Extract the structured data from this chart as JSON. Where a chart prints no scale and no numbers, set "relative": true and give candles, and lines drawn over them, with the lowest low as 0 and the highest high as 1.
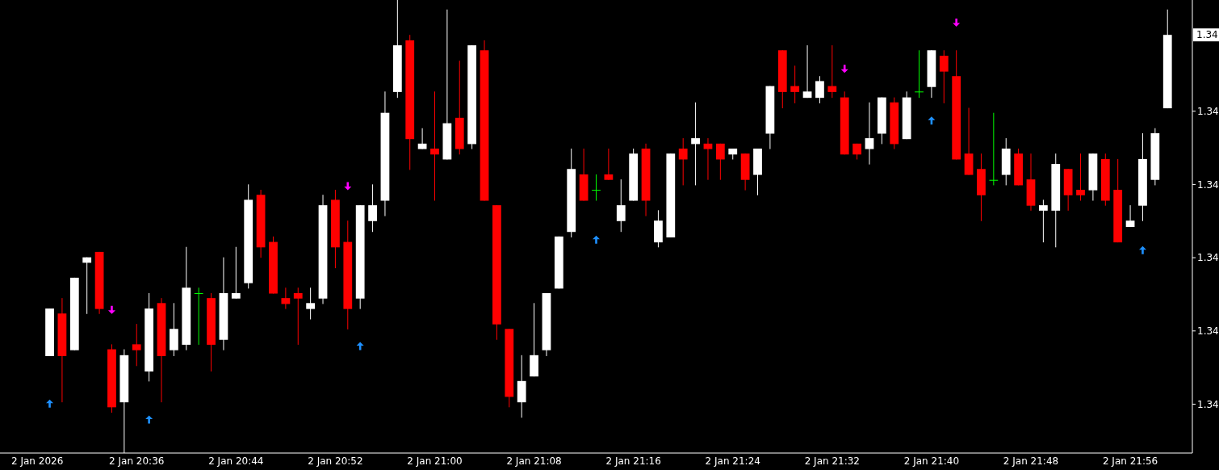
{
  "chart_data": {
    "type": "candlestick",
    "relative": true,
    "x": [
      "2026-01-02T20:29",
      "2026-01-02T20:30",
      "2026-01-02T20:31",
      "2026-01-02T20:32",
      "2026-01-02T20:33",
      "2026-01-02T20:34",
      "2026-01-02T20:35",
      "2026-01-02T20:36",
      "2026-01-02T20:37",
      "2026-01-02T20:38",
      "2026-01-02T20:39",
      "2026-01-02T20:40",
      "2026-01-02T20:41",
      "2026-01-02T20:42",
      "2026-01-02T20:43",
      "2026-01-02T20:44",
      "2026-01-02T20:45",
      "2026-01-02T20:46",
      "2026-01-02T20:47",
      "2026-01-02T20:48",
      "2026-01-02T20:49",
      "2026-01-02T20:50",
      "2026-01-02T20:51",
      "2026-01-02T20:52",
      "2026-01-02T20:53",
      "2026-01-02T20:54",
      "2026-01-02T20:55",
      "2026-01-02T20:56",
      "2026-01-02T20:57",
      "2026-01-02T20:58",
      "2026-01-02T20:59",
      "2026-01-02T21:00",
      "2026-01-02T21:01",
      "2026-01-02T21:02",
      "2026-01-02T21:03",
      "2026-01-02T21:04",
      "2026-01-02T21:05",
      "2026-01-02T21:06",
      "2026-01-02T21:07",
      "2026-01-02T21:08",
      "2026-01-02T21:09",
      "2026-01-02T21:10",
      "2026-01-02T21:11",
      "2026-01-02T21:12",
      "2026-01-02T21:13",
      "2026-01-02T21:14",
      "2026-01-02T21:15",
      "2026-01-02T21:16",
      "2026-01-02T21:17",
      "2026-01-02T21:18",
      "2026-01-02T21:19",
      "2026-01-02T21:20",
      "2026-01-02T21:21",
      "2026-01-02T21:22",
      "2026-01-02T21:23",
      "2026-01-02T21:24",
      "2026-01-02T21:25",
      "2026-01-02T21:26",
      "2026-01-02T21:27",
      "2026-01-02T21:28",
      "2026-01-02T21:29",
      "2026-01-02T21:30",
      "2026-01-02T21:31",
      "2026-01-02T21:32",
      "2026-01-02T21:33",
      "2026-01-02T21:34",
      "2026-01-02T21:35",
      "2026-01-02T21:36",
      "2026-01-02T21:37",
      "2026-01-02T21:38",
      "2026-01-02T21:39",
      "2026-01-02T21:40",
      "2026-01-02T21:41",
      "2026-01-02T21:42",
      "2026-01-02T21:43",
      "2026-01-02T21:44",
      "2026-01-02T21:45",
      "2026-01-02T21:46",
      "2026-01-02T21:47",
      "2026-01-02T21:48",
      "2026-01-02T21:49",
      "2026-01-02T21:50",
      "2026-01-02T21:51",
      "2026-01-02T21:52",
      "2026-01-02T21:53",
      "2026-01-02T21:54",
      "2026-01-02T21:55",
      "2026-01-02T21:56",
      "2026-01-02T21:57",
      "2026-01-02T21:58",
      "2026-01-02T21:59"
    ],
    "ohlc": [
      [
        0.214,
        0.319,
        0.214,
        0.319
      ],
      [
        0.308,
        0.342,
        0.112,
        0.214
      ],
      [
        0.227,
        0.387,
        0.227,
        0.387
      ],
      [
        0.42,
        0.432,
        0.307,
        0.432
      ],
      [
        0.444,
        0.444,
        0.307,
        0.318
      ],
      [
        0.229,
        0.24,
        0.089,
        0.101
      ],
      [
        0.112,
        0.229,
        0,
        0.216
      ],
      [
        0.24,
        0.285,
        0.192,
        0.227
      ],
      [
        0.18,
        0.353,
        0.158,
        0.319
      ],
      [
        0.331,
        0.342,
        0.112,
        0.214
      ],
      [
        0.227,
        0.331,
        0.214,
        0.274
      ],
      [
        0.239,
        0.455,
        0.227,
        0.365
      ],
      [
        0.353,
        0.365,
        0.239,
        0.353
      ],
      [
        0.342,
        0.353,
        0.18,
        0.239
      ],
      [
        0.25,
        0.432,
        0.227,
        0.353
      ],
      [
        0.341,
        0.455,
        0.341,
        0.353
      ],
      [
        0.375,
        0.593,
        0.363,
        0.559
      ],
      [
        0.57,
        0.581,
        0.431,
        0.454
      ],
      [
        0.466,
        0.478,
        0.352,
        0.352
      ],
      [
        0.342,
        0.365,
        0.318,
        0.329
      ],
      [
        0.353,
        0.365,
        0.239,
        0.341
      ],
      [
        0.318,
        0.365,
        0.295,
        0.331
      ],
      [
        0.341,
        0.57,
        0.329,
        0.547
      ],
      [
        0.559,
        0.581,
        0.408,
        0.454
      ],
      [
        0.466,
        0.513,
        0.273,
        0.318
      ],
      [
        0.341,
        0.547,
        0.318,
        0.547
      ],
      [
        0.512,
        0.593,
        0.488,
        0.547
      ],
      [
        0.557,
        0.798,
        0.523,
        0.751
      ],
      [
        0.797,
        1,
        0.784,
        0.9
      ],
      [
        0.911,
        0.923,
        0.625,
        0.693
      ],
      [
        0.671,
        0.717,
        0.671,
        0.683
      ],
      [
        0.672,
        0.798,
        0.557,
        0.659
      ],
      [
        0.648,
        0.979,
        0.648,
        0.728
      ],
      [
        0.74,
        0.866,
        0.659,
        0.671
      ],
      [
        0.682,
        0.9,
        0.671,
        0.9
      ],
      [
        0.889,
        0.911,
        0.557,
        0.557
      ],
      [
        0.547,
        0.547,
        0.25,
        0.284
      ],
      [
        0.274,
        0.274,
        0.101,
        0.124
      ],
      [
        0.112,
        0.216,
        0.078,
        0.159
      ],
      [
        0.169,
        0.331,
        0.169,
        0.216
      ],
      [
        0.227,
        0.353,
        0.214,
        0.353
      ],
      [
        0.363,
        0.478,
        0.363,
        0.478
      ],
      [
        0.488,
        0.672,
        0.476,
        0.627
      ],
      [
        0.615,
        0.672,
        0.557,
        0.557
      ],
      [
        0.581,
        0.615,
        0.557,
        0.581
      ],
      [
        0.615,
        0.672,
        0.603,
        0.603
      ],
      [
        0.512,
        0.604,
        0.488,
        0.547
      ],
      [
        0.557,
        0.672,
        0.557,
        0.661
      ],
      [
        0.672,
        0.683,
        0.523,
        0.557
      ],
      [
        0.465,
        0.536,
        0.454,
        0.513
      ],
      [
        0.476,
        0.661,
        0.476,
        0.661
      ],
      [
        0.672,
        0.695,
        0.591,
        0.648
      ],
      [
        0.682,
        0.774,
        0.591,
        0.695
      ],
      [
        0.683,
        0.695,
        0.603,
        0.671
      ],
      [
        0.683,
        0.683,
        0.603,
        0.648
      ],
      [
        0.659,
        0.672,
        0.648,
        0.672
      ],
      [
        0.661,
        0.661,
        0.58,
        0.603
      ],
      [
        0.614,
        0.672,
        0.569,
        0.672
      ],
      [
        0.705,
        0.81,
        0.671,
        0.81
      ],
      [
        0.889,
        0.889,
        0.761,
        0.797
      ],
      [
        0.81,
        0.855,
        0.772,
        0.797
      ],
      [
        0.784,
        0.9,
        0.784,
        0.798
      ],
      [
        0.784,
        0.832,
        0.772,
        0.821
      ],
      [
        0.81,
        0.9,
        0.784,
        0.797
      ],
      [
        0.785,
        0.798,
        0.659,
        0.659
      ],
      [
        0.683,
        0.683,
        0.648,
        0.659
      ],
      [
        0.671,
        0.774,
        0.637,
        0.695
      ],
      [
        0.705,
        0.785,
        0.682,
        0.785
      ],
      [
        0.774,
        0.785,
        0.671,
        0.682
      ],
      [
        0.693,
        0.798,
        0.693,
        0.785
      ],
      [
        0.798,
        0.889,
        0.784,
        0.798
      ],
      [
        0.808,
        0.889,
        0.784,
        0.889
      ],
      [
        0.877,
        0.889,
        0.772,
        0.842
      ],
      [
        0.832,
        0.889,
        0.648,
        0.648
      ],
      [
        0.661,
        0.762,
        0.614,
        0.614
      ],
      [
        0.627,
        0.661,
        0.512,
        0.569
      ],
      [
        0.603,
        0.751,
        0.591,
        0.603
      ],
      [
        0.614,
        0.695,
        0.591,
        0.672
      ],
      [
        0.661,
        0.672,
        0.591,
        0.591
      ],
      [
        0.604,
        0.661,
        0.535,
        0.546
      ],
      [
        0.535,
        0.559,
        0.465,
        0.547
      ],
      [
        0.535,
        0.661,
        0.454,
        0.638
      ],
      [
        0.627,
        0.627,
        0.535,
        0.569
      ],
      [
        0.581,
        0.661,
        0.557,
        0.569
      ],
      [
        0.58,
        0.661,
        0.557,
        0.661
      ],
      [
        0.649,
        0.661,
        0.546,
        0.557
      ],
      [
        0.581,
        0.649,
        0.465,
        0.465
      ],
      [
        0.499,
        0.547,
        0.499,
        0.513
      ],
      [
        0.546,
        0.706,
        0.512,
        0.649
      ],
      [
        0.603,
        0.717,
        0.591,
        0.706
      ],
      [
        0.761,
        0.979,
        0.761,
        0.923
      ]
    ],
    "colors": [
      "#ffffff",
      "#ff0000",
      "#ffffff",
      "#ffffff",
      "#ff0000",
      "#ff0000",
      "#ffffff",
      "#ff0000",
      "#ffffff",
      "#ff0000",
      "#ffffff",
      "#ffffff",
      "#00ff00",
      "#ff0000",
      "#ffffff",
      "#ffffff",
      "#ffffff",
      "#ff0000",
      "#ff0000",
      "#ff0000",
      "#ff0000",
      "#ffffff",
      "#ffffff",
      "#ff0000",
      "#ff0000",
      "#ffffff",
      "#ffffff",
      "#ffffff",
      "#ffffff",
      "#ff0000",
      "#ffffff",
      "#ff0000",
      "#ffffff",
      "#ff0000",
      "#ffffff",
      "#ff0000",
      "#ff0000",
      "#ff0000",
      "#ffffff",
      "#ffffff",
      "#ffffff",
      "#ffffff",
      "#ffffff",
      "#ff0000",
      "#00ff00",
      "#ff0000",
      "#ffffff",
      "#ffffff",
      "#ff0000",
      "#ffffff",
      "#ffffff",
      "#ff0000",
      "#ffffff",
      "#ff0000",
      "#ff0000",
      "#ffffff",
      "#ff0000",
      "#ffffff",
      "#ffffff",
      "#ff0000",
      "#ff0000",
      "#ffffff",
      "#ffffff",
      "#ff0000",
      "#ff0000",
      "#ff0000",
      "#ffffff",
      "#ffffff",
      "#ff0000",
      "#ffffff",
      "#00ff00",
      "#ffffff",
      "#ff0000",
      "#ff0000",
      "#ff0000",
      "#ff0000",
      "#00ff00",
      "#ffffff",
      "#ff0000",
      "#ff0000",
      "#ffffff",
      "#ffffff",
      "#ff0000",
      "#ff0000",
      "#ffffff",
      "#ff0000",
      "#ff0000",
      "#ffffff",
      "#ffffff",
      "#ffffff",
      "#ffffff"
    ],
    "series": [
      {
        "type": "scatter",
        "color": "#1e90ff",
        "x": [
          "2026-01-02T20:29",
          "2026-01-02T20:37",
          "2026-01-02T20:54",
          "2026-01-02T21:13",
          "2026-01-02T21:40",
          "2026-01-02T21:57"
        ],
        "values": [
          0.109,
          0.074,
          0.236,
          0.471,
          0.734,
          0.448
        ]
      },
      {
        "type": "scatter",
        "color": "#ff00ff",
        "x": [
          "2026-01-02T20:34",
          "2026-01-02T20:53",
          "2026-01-02T21:33",
          "2026-01-02T21:42"
        ],
        "values": [
          0.316,
          0.589,
          0.848,
          0.95
        ]
      }
    ],
    "xlim": [
      "2026-01-02T20:25",
      "2026-01-02T22:01"
    ],
    "xticks": [
      {
        "value": "2026-01-02T20:28",
        "label": "2 Jan 2026"
      },
      {
        "value": "2026-01-02T20:36",
        "label": "2 Jan 20:36"
      },
      {
        "value": "2026-01-02T20:44",
        "label": "2 Jan 20:44"
      },
      {
        "value": "2026-01-02T20:52",
        "label": "2 Jan 20:52"
      },
      {
        "value": "2026-01-02T21:00",
        "label": "2 Jan 21:00"
      },
      {
        "value": "2026-01-02T21:08",
        "label": "2 Jan 21:08"
      },
      {
        "value": "2026-01-02T21:16",
        "label": "2 Jan 21:16"
      },
      {
        "value": "2026-01-02T21:24",
        "label": "2 Jan 21:24"
      },
      {
        "value": "2026-01-02T21:32",
        "label": "2 Jan 21:32"
      },
      {
        "value": "2026-01-02T21:40",
        "label": "2 Jan 21:40"
      },
      {
        "value": "2026-01-02T21:48",
        "label": "2 Jan 21:48"
      },
      {
        "value": "2026-01-02T21:56",
        "label": "2 Jan 21:56"
      }
    ],
    "annotations": [
      "1.34",
      "1.34",
      "1.34",
      "1.34",
      "1.34",
      "1.34"
    ]
  }
}
